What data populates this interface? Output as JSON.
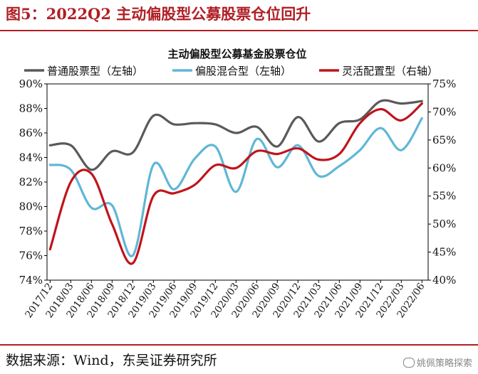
{
  "figure": {
    "title": "图5：2022Q2 主动偏股型公募股票仓位回升",
    "source": "数据来源：Wind，东吴证券研究所",
    "watermark": "姚佩策略探索"
  },
  "colors": {
    "accent": "#b01f24",
    "series_gray": "#5a5a5a",
    "series_blue": "#5fb7d6",
    "series_red": "#c0141b"
  },
  "chart_data": {
    "type": "line",
    "title": "主动偏股型公募基金股票仓位",
    "x": [
      "2017/12",
      "2018/03",
      "2018/06",
      "2018/09",
      "2018/12",
      "2019/03",
      "2019/06",
      "2019/09",
      "2019/12",
      "2020/03",
      "2020/06",
      "2020/09",
      "2020/12",
      "2021/03",
      "2021/06",
      "2021/09",
      "2021/12",
      "2022/03",
      "2022/06"
    ],
    "y_left": {
      "ylim": [
        74,
        90
      ],
      "ticks": [
        "90%",
        "88%",
        "86%",
        "84%",
        "82%",
        "80%",
        "78%",
        "76%",
        "74%"
      ]
    },
    "y_right": {
      "ylim": [
        40,
        75
      ],
      "ticks": [
        "75%",
        "70%",
        "65%",
        "60%",
        "55%",
        "50%",
        "45%",
        "40%"
      ]
    },
    "grid": false,
    "legend_position": "top",
    "series": [
      {
        "name": "普通股票型（左轴）",
        "axis": "left",
        "color": "#5a5a5a",
        "values": [
          85.0,
          85.0,
          83.0,
          84.5,
          84.4,
          87.4,
          86.7,
          86.8,
          86.7,
          86.0,
          86.5,
          84.9,
          87.3,
          85.3,
          86.8,
          87.1,
          88.6,
          88.4,
          88.6
        ]
      },
      {
        "name": "偏股混合型（左轴）",
        "axis": "left",
        "color": "#5fb7d6",
        "values": [
          83.4,
          83.0,
          79.9,
          80.1,
          76.0,
          83.4,
          81.4,
          83.9,
          84.9,
          81.2,
          85.5,
          83.2,
          85.0,
          82.5,
          83.3,
          84.6,
          86.4,
          84.6,
          87.2
        ]
      },
      {
        "name": "灵活配置型（右轴）",
        "axis": "right",
        "color": "#c0141b",
        "values": [
          45.5,
          57.5,
          59.0,
          50.0,
          43.0,
          55.0,
          55.5,
          57.0,
          60.5,
          60.0,
          63.0,
          62.5,
          63.5,
          61.5,
          62.5,
          68.0,
          70.5,
          68.5,
          71.5
        ]
      }
    ]
  }
}
